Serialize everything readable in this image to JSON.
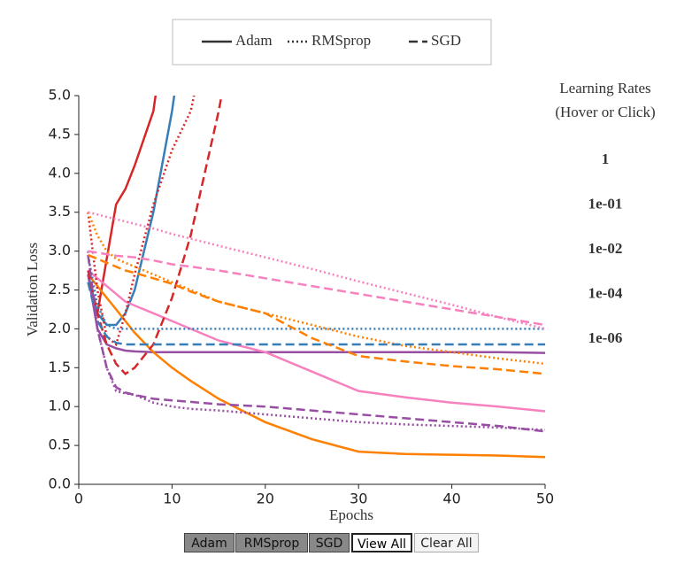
{
  "chart_data": {
    "type": "line",
    "x_label": "Epochs",
    "y_label": "Validation Loss",
    "legend_title": "Learning Rates",
    "legend_subtitle": "(Hover or Click)",
    "x": [
      1,
      2,
      3,
      4,
      5,
      6,
      8,
      10,
      12,
      15,
      20,
      25,
      30,
      35,
      40,
      45,
      50
    ],
    "xlim": [
      0,
      50
    ],
    "xticks": [
      0,
      10,
      20,
      30,
      40,
      50
    ],
    "ylim": [
      0,
      5
    ],
    "yticks": [
      {
        "value": 0,
        "label": "0.0"
      },
      {
        "value": 0.5,
        "label": "0.5"
      },
      {
        "value": 1,
        "label": "1.0"
      },
      {
        "value": 1.5,
        "label": "1.5"
      },
      {
        "value": 2,
        "label": "2.0"
      },
      {
        "value": 2.5,
        "label": "2.5"
      },
      {
        "value": 3,
        "label": "3.0"
      },
      {
        "value": 3.5,
        "label": "3.5"
      },
      {
        "value": 4,
        "label": "4.0"
      },
      {
        "value": 4.5,
        "label": "4.5"
      },
      {
        "value": 5,
        "label": "5.0"
      }
    ],
    "learning_rates": [
      {
        "label": "1",
        "color": "#d62728"
      },
      {
        "label": "1e-01",
        "color": "#377eb8"
      },
      {
        "label": "1e-02",
        "color": "#984ea3"
      },
      {
        "label": "1e-04",
        "color": "#ff7f00"
      },
      {
        "label": "1e-06",
        "color": "#f781bf"
      }
    ],
    "optimizers": [
      {
        "name": "Adam",
        "dash": "solid",
        "values": [
          [
            2.7,
            2.2,
            2.9,
            3.6,
            3.8,
            4.1,
            4.8,
            6.5,
            null,
            null,
            null,
            null,
            null,
            null,
            null,
            null,
            null
          ],
          [
            2.7,
            2.2,
            2.05,
            2.05,
            2.2,
            2.5,
            3.5,
            4.8,
            6.5,
            null,
            null,
            null,
            null,
            null,
            null,
            null,
            null
          ],
          [
            2.7,
            2.0,
            1.8,
            1.75,
            1.72,
            1.71,
            1.7,
            1.7,
            1.7,
            1.7,
            1.7,
            1.7,
            1.7,
            1.7,
            1.7,
            1.7,
            1.69
          ],
          [
            2.7,
            2.55,
            2.4,
            2.25,
            2.1,
            1.95,
            1.7,
            1.5,
            1.33,
            1.1,
            0.8,
            0.58,
            0.42,
            0.39,
            0.38,
            0.37,
            0.35
          ],
          [
            2.75,
            2.65,
            2.55,
            2.45,
            2.35,
            2.3,
            2.2,
            2.1,
            2.0,
            1.85,
            1.7,
            1.45,
            1.2,
            1.12,
            1.05,
            1.0,
            0.94
          ]
        ]
      },
      {
        "name": "RMSprop",
        "dash": "dotted",
        "values": [
          [
            3.5,
            2.5,
            1.9,
            1.8,
            2.2,
            2.7,
            3.6,
            4.3,
            4.8,
            6.5,
            null,
            null,
            null,
            null,
            null,
            null,
            null
          ],
          [
            2.95,
            2.3,
            2.05,
            2.0,
            2.0,
            2.0,
            2.0,
            2.0,
            2.0,
            2.0,
            2.0,
            2.0,
            2.0,
            2.0,
            2.0,
            2.0,
            2.0
          ],
          [
            3.0,
            2.0,
            1.5,
            1.2,
            1.17,
            1.15,
            1.05,
            1.0,
            0.97,
            0.95,
            0.9,
            0.85,
            0.8,
            0.77,
            0.75,
            0.73,
            0.7
          ],
          [
            3.5,
            3.2,
            3.0,
            2.9,
            2.85,
            2.8,
            2.7,
            2.6,
            2.5,
            2.35,
            2.2,
            2.05,
            1.9,
            1.78,
            1.7,
            1.62,
            1.55
          ],
          [
            3.5,
            3.47,
            3.44,
            3.41,
            3.38,
            3.35,
            3.29,
            3.22,
            3.16,
            3.07,
            2.92,
            2.77,
            2.61,
            2.46,
            2.31,
            2.15,
            2.0
          ]
        ]
      },
      {
        "name": "SGD",
        "dash": "dashed",
        "values": [
          [
            2.75,
            2.2,
            1.8,
            1.55,
            1.42,
            1.5,
            1.8,
            2.4,
            3.2,
            4.8,
            8.0,
            null,
            null,
            null,
            null,
            null,
            null
          ],
          [
            2.6,
            2.1,
            1.9,
            1.82,
            1.8,
            1.8,
            1.8,
            1.8,
            1.8,
            1.8,
            1.8,
            1.8,
            1.8,
            1.8,
            1.8,
            1.8,
            1.8
          ],
          [
            2.95,
            2.0,
            1.5,
            1.25,
            1.18,
            1.15,
            1.1,
            1.08,
            1.06,
            1.03,
            1.0,
            0.95,
            0.9,
            0.85,
            0.8,
            0.75,
            0.68
          ],
          [
            2.95,
            2.9,
            2.85,
            2.8,
            2.75,
            2.72,
            2.65,
            2.58,
            2.48,
            2.35,
            2.2,
            1.88,
            1.65,
            1.58,
            1.52,
            1.48,
            1.42
          ],
          [
            3.0,
            2.98,
            2.96,
            2.94,
            2.93,
            2.92,
            2.88,
            2.83,
            2.8,
            2.75,
            2.65,
            2.55,
            2.45,
            2.35,
            2.25,
            2.15,
            2.05
          ]
        ]
      }
    ]
  },
  "controls": {
    "view_all": "View All",
    "clear_all": "Clear All"
  }
}
